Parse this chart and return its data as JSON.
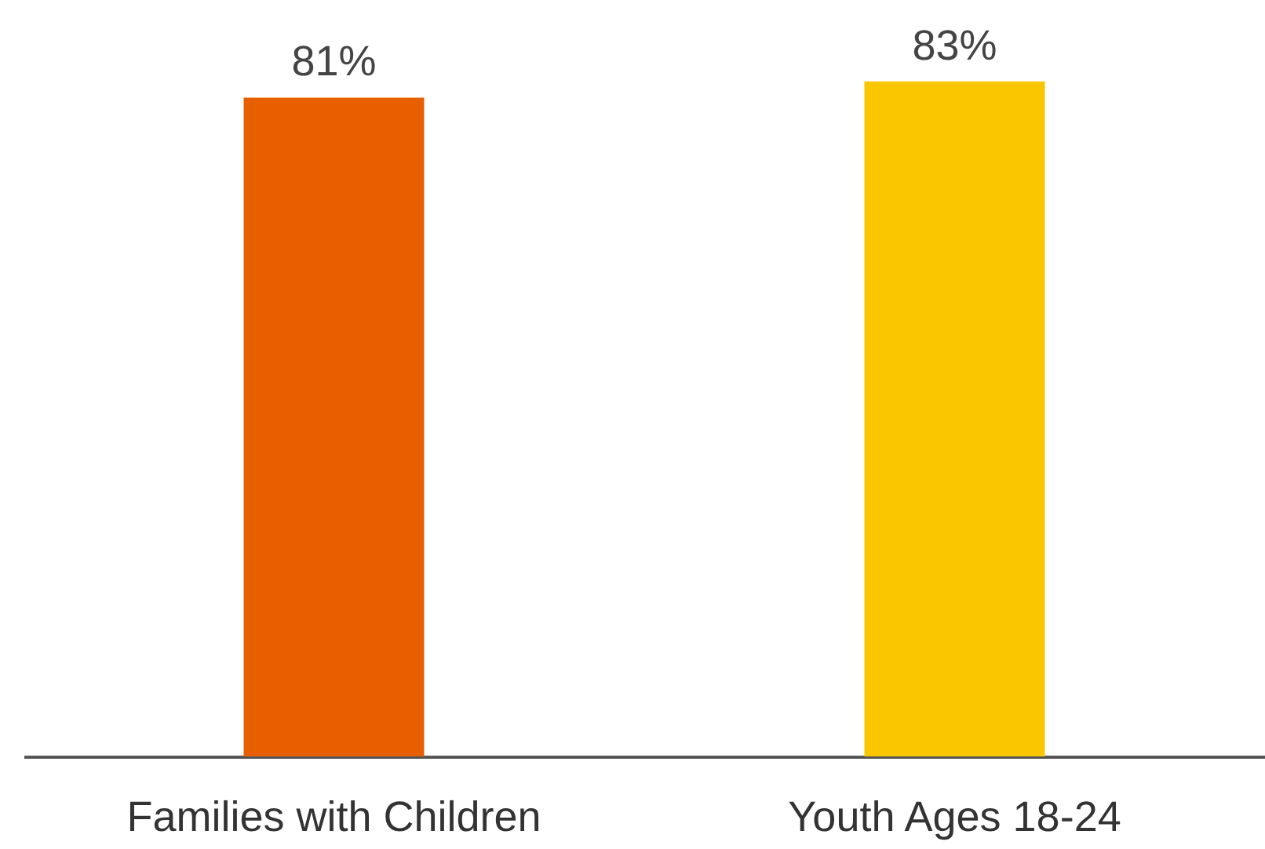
{
  "chart_data": {
    "type": "bar",
    "categories": [
      "Families with Children",
      "Youth Ages 18-24"
    ],
    "values": [
      81,
      83
    ],
    "colors": [
      "#e85f00",
      "#fac600"
    ],
    "ylim": [
      0,
      93
    ],
    "data_labels": true,
    "value_labels": [
      "81%",
      "83%"
    ]
  }
}
